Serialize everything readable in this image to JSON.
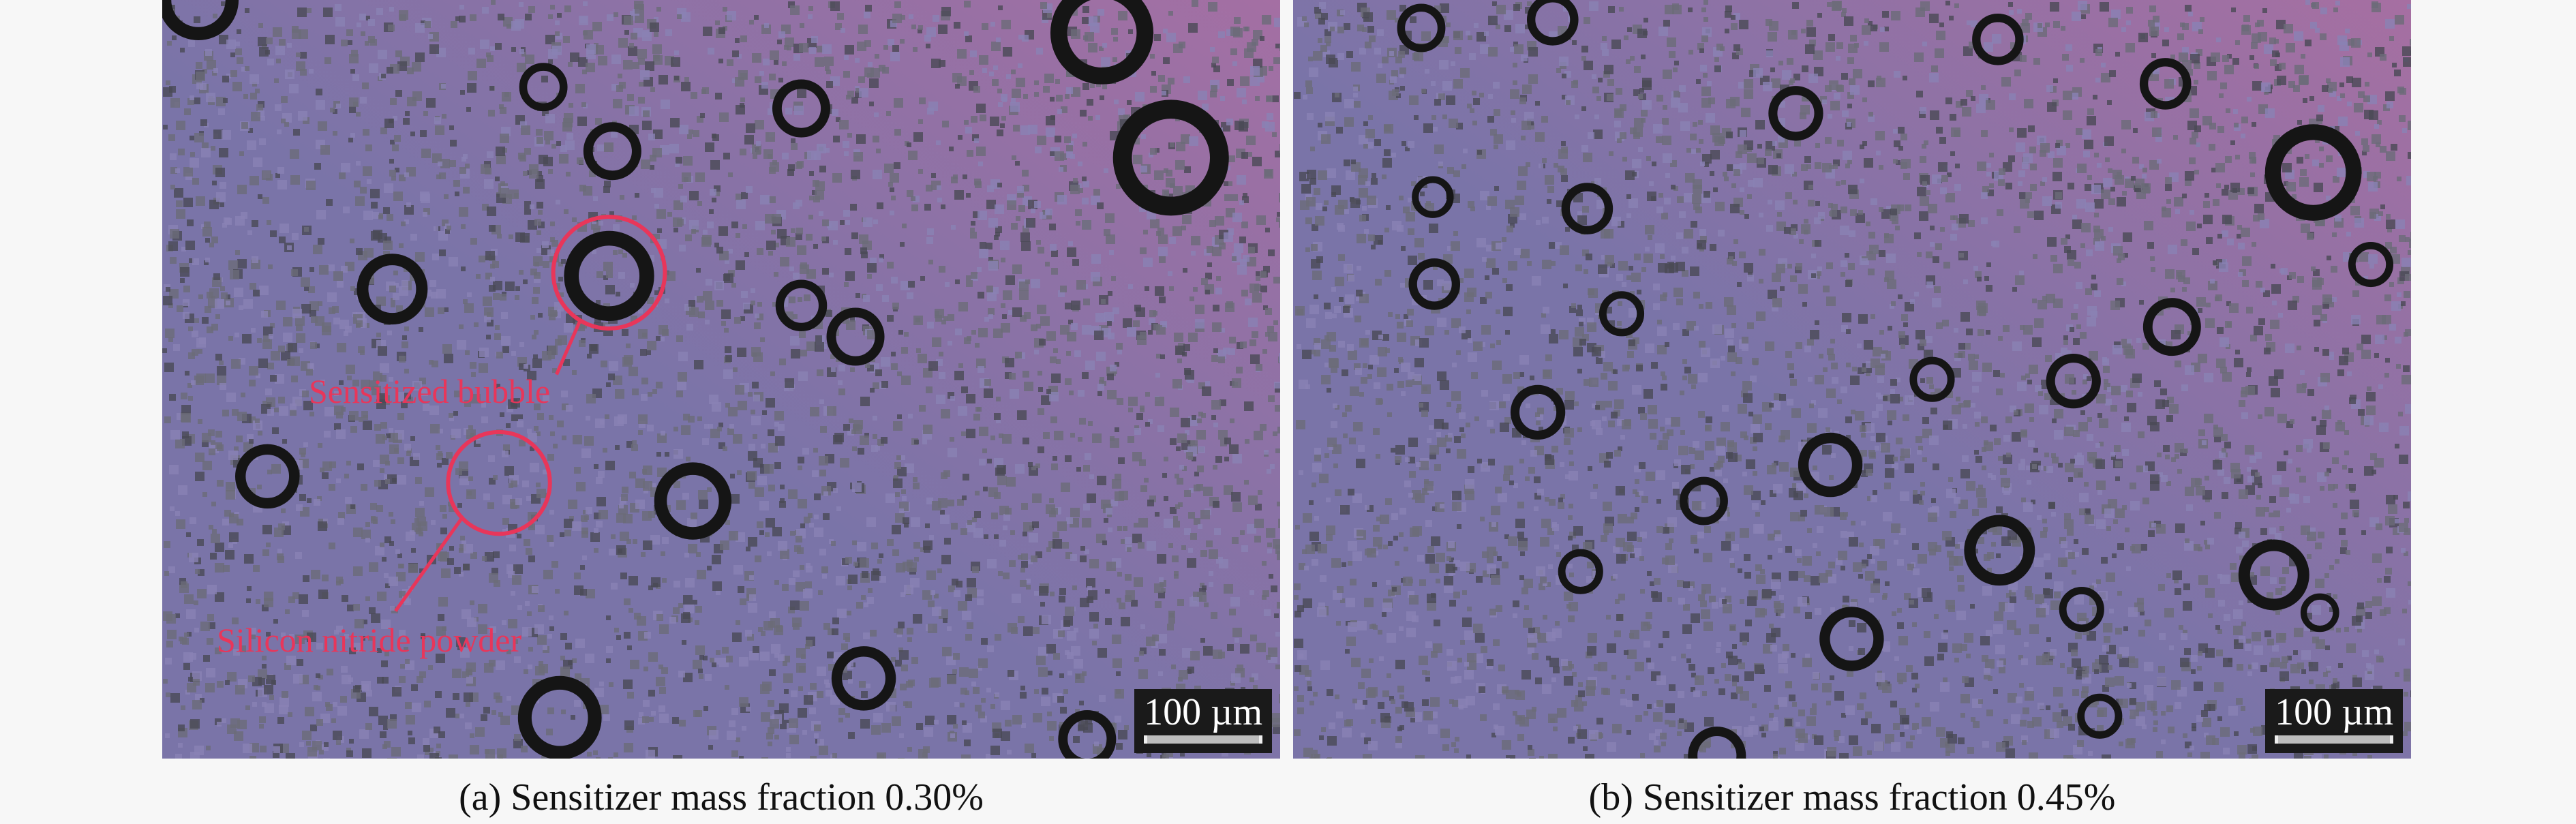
{
  "panels": [
    {
      "id": "a",
      "caption": "(a) Sensitizer mass fraction 0.30%",
      "scale_bar": "100 µm",
      "annotations": [
        "Sensitized bubble",
        "Silicon nitride powder"
      ],
      "colors": {
        "base": "#7a74a8",
        "tint": "#a46fa3",
        "bubble": "#151515",
        "annotation": "#e8365a"
      }
    },
    {
      "id": "b",
      "caption": "(b) Sensitizer mass fraction 0.45%",
      "scale_bar": "100 µm",
      "colors": {
        "base": "#7a74a8",
        "tint": "#a66fa2",
        "bubble": "#151515"
      }
    }
  ]
}
